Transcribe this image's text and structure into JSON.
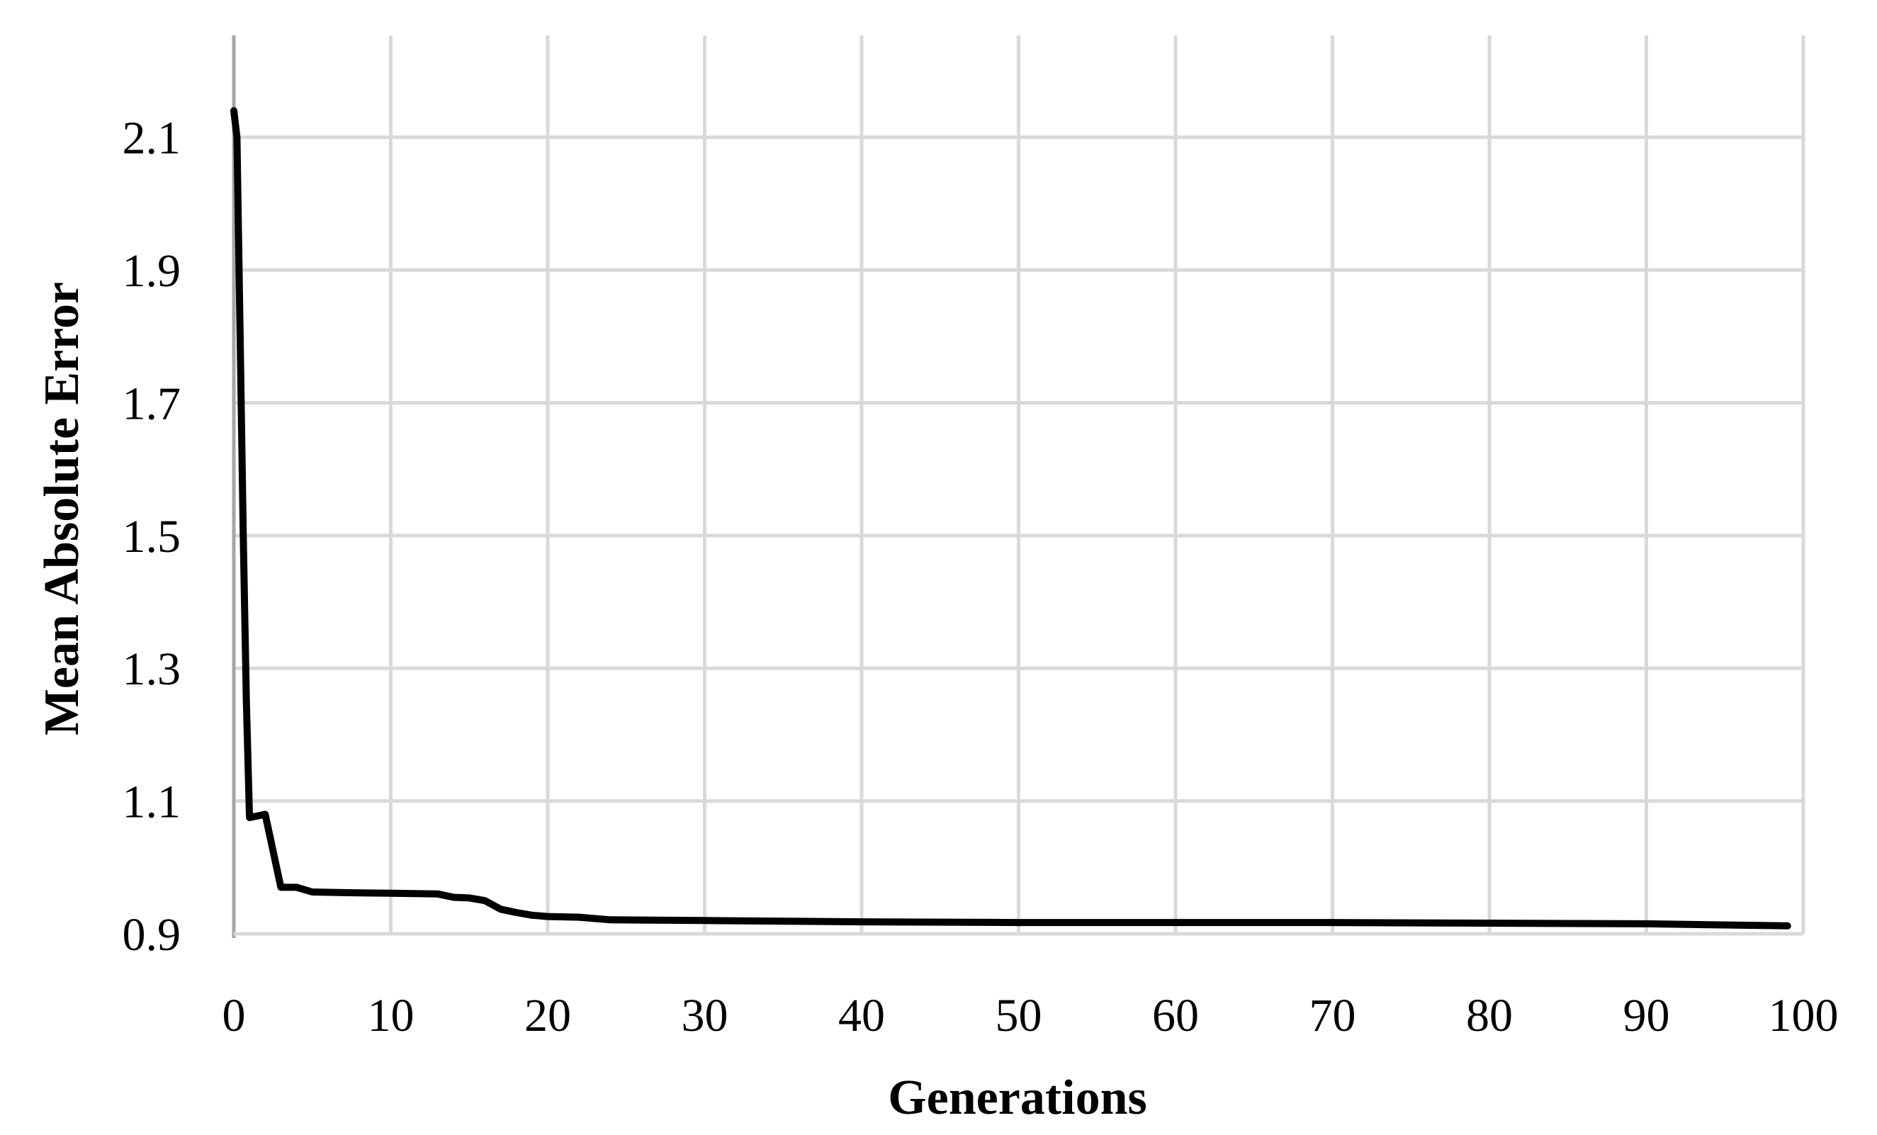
{
  "chart_data": {
    "type": "line",
    "title": "",
    "xlabel": "Generations",
    "ylabel": "Mean Absolute Error",
    "xlim": [
      0,
      100
    ],
    "ylim": [
      0.9,
      2.2
    ],
    "x_ticks": [
      0,
      10,
      20,
      30,
      40,
      50,
      60,
      70,
      80,
      90,
      100
    ],
    "x_tick_labels": [
      "0",
      "10",
      "20",
      "30",
      "40",
      "50",
      "60",
      "70",
      "80",
      "90",
      "100"
    ],
    "y_ticks": [
      0.9,
      1.1,
      1.3,
      1.5,
      1.7,
      1.9,
      2.1
    ],
    "y_tick_labels": [
      "0.9",
      "1.1",
      "1.3",
      "1.5",
      "1.7",
      "1.9",
      "2.1"
    ],
    "grid": true,
    "legend": "none",
    "series": [
      {
        "color": "#000000",
        "points": [
          [
            0,
            2.14
          ],
          [
            0.2,
            2.1
          ],
          [
            0.4,
            1.8
          ],
          [
            0.6,
            1.5
          ],
          [
            0.8,
            1.25
          ],
          [
            1,
            1.075
          ],
          [
            2,
            1.08
          ],
          [
            3,
            0.97
          ],
          [
            4,
            0.97
          ],
          [
            5,
            0.963
          ],
          [
            7,
            0.962
          ],
          [
            10,
            0.961
          ],
          [
            13,
            0.96
          ],
          [
            14,
            0.955
          ],
          [
            15,
            0.954
          ],
          [
            16,
            0.95
          ],
          [
            17,
            0.937
          ],
          [
            18,
            0.932
          ],
          [
            19,
            0.928
          ],
          [
            20,
            0.926
          ],
          [
            22,
            0.925
          ],
          [
            24,
            0.921
          ],
          [
            30,
            0.92
          ],
          [
            40,
            0.918
          ],
          [
            50,
            0.917
          ],
          [
            60,
            0.917
          ],
          [
            70,
            0.917
          ],
          [
            80,
            0.916
          ],
          [
            90,
            0.915
          ],
          [
            99,
            0.912
          ]
        ]
      }
    ]
  }
}
